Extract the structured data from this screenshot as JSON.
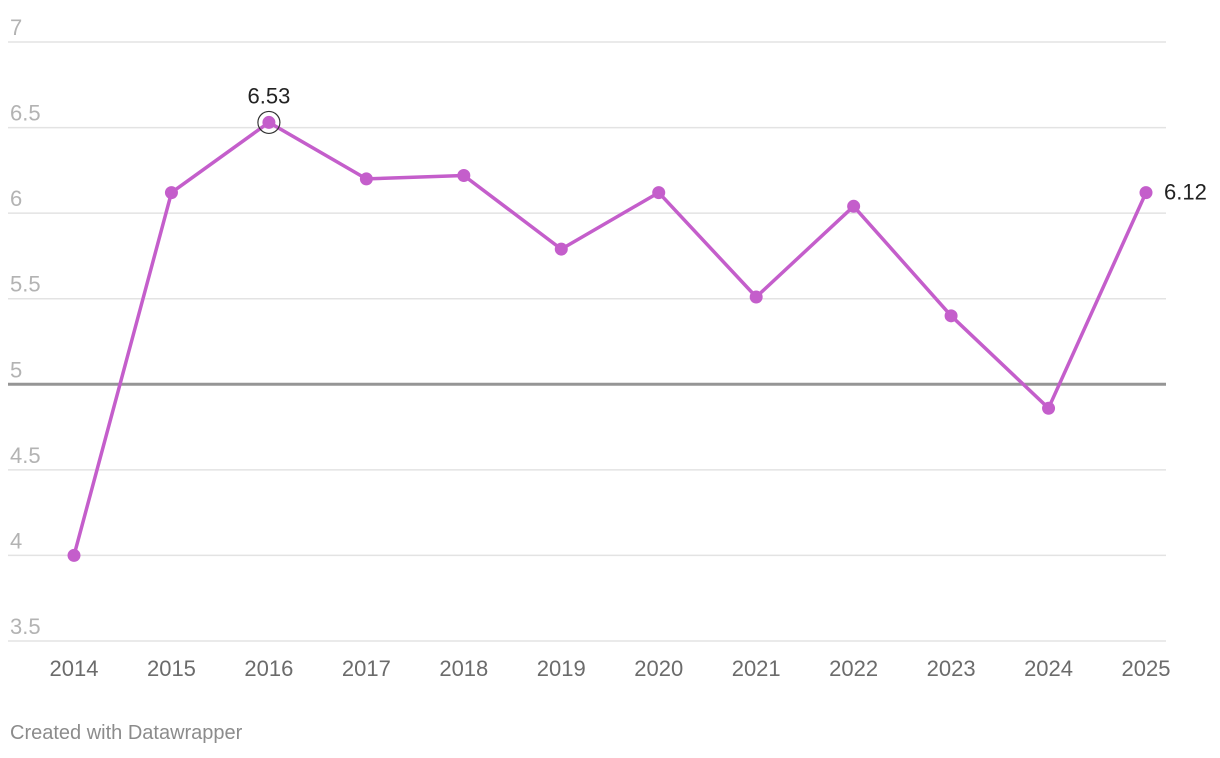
{
  "chart_data": {
    "type": "line",
    "title": "",
    "xlabel": "",
    "ylabel": "",
    "x": [
      "2014",
      "2015",
      "2016",
      "2017",
      "2018",
      "2019",
      "2020",
      "2021",
      "2022",
      "2023",
      "2024",
      "2025"
    ],
    "series": [
      {
        "values": [
          4.0,
          6.12,
          6.53,
          6.2,
          6.22,
          5.79,
          6.12,
          5.51,
          6.04,
          5.4,
          4.86,
          6.12
        ]
      }
    ],
    "ylim": [
      3.5,
      7
    ],
    "yticks": [
      "3.5",
      "4",
      "4.5",
      "5",
      "5.5",
      "6",
      "6.5",
      "7"
    ],
    "reference_line": 5,
    "data_labels": [
      {
        "x": "2016",
        "text": "6.53"
      },
      {
        "x": "2025",
        "text": "6.12"
      }
    ],
    "grid": true,
    "legend": "none",
    "colors": {
      "line": "#c45ecb",
      "grid": "#e3e3e3",
      "reference": "#959595"
    }
  },
  "footer": {
    "text": "Created with Datawrapper"
  }
}
